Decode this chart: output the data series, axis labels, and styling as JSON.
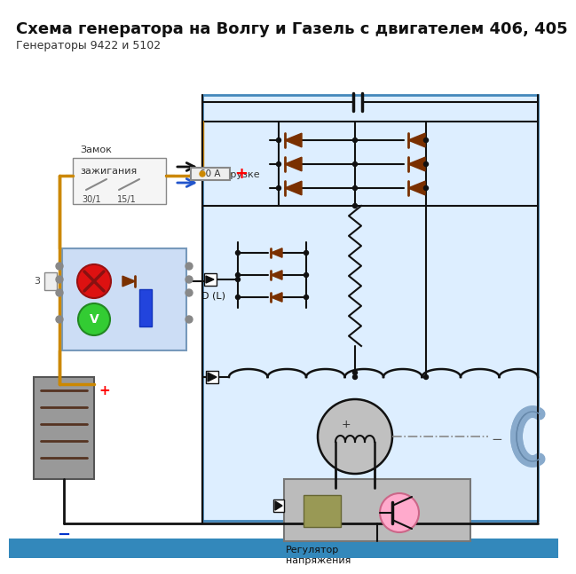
{
  "title": "Схема генератора на Волгу и Газель с двигателем 406, 405",
  "subtitle": "Генераторы 9422 и 5102",
  "title_fontsize": 13,
  "subtitle_fontsize": 9,
  "bg_color": "#ffffff",
  "gen_box_color": "#ddeeff",
  "gen_box_edge": "#4488bb",
  "wire_color": "#111111",
  "orange_wire": "#cc8800",
  "blue_wire": "#2255cc",
  "diode_color": "#7a3000",
  "ind_box_color": "#ccddf5",
  "bottom_bar": "#3388bb",
  "gray_box": "#aaaaaa",
  "vreg_color": "#bbbbbb",
  "fan_color": "#88aacc"
}
